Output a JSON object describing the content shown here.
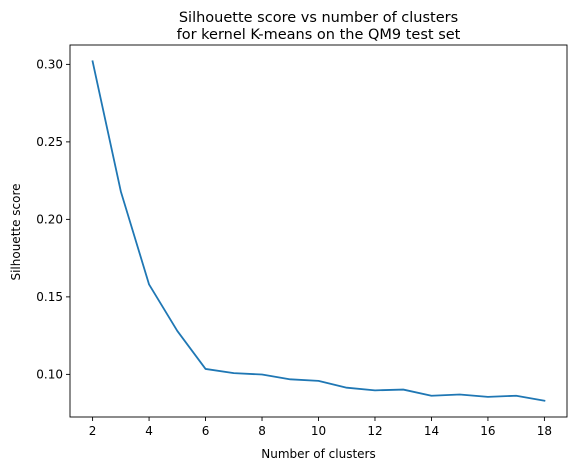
{
  "chart_data": {
    "type": "line",
    "title_lines": [
      "Silhouette score vs number of clusters",
      "for kernel K-means on the QM9 test set"
    ],
    "xlabel": "Number of clusters",
    "ylabel": "Silhouette score",
    "xlim": [
      1.2,
      18.8
    ],
    "ylim": [
      0.0725,
      0.3125
    ],
    "xticks": [
      2,
      4,
      6,
      8,
      10,
      12,
      14,
      16,
      18
    ],
    "xtick_labels": [
      "2",
      "4",
      "6",
      "8",
      "10",
      "12",
      "14",
      "16",
      "18"
    ],
    "yticks": [
      0.1,
      0.15,
      0.2,
      0.25,
      0.3
    ],
    "ytick_labels": [
      "0.10",
      "0.15",
      "0.20",
      "0.25",
      "0.30"
    ],
    "grid": false,
    "series": [
      {
        "color": "#1f77b4",
        "x": [
          2,
          3,
          4,
          5,
          6,
          7,
          8,
          9,
          10,
          11,
          12,
          13,
          14,
          15,
          16,
          17,
          18
        ],
        "y": [
          0.302,
          0.218,
          0.158,
          0.128,
          0.1035,
          0.1008,
          0.0999,
          0.0968,
          0.0958,
          0.0914,
          0.0897,
          0.0902,
          0.0862,
          0.087,
          0.0855,
          0.0862,
          0.083
        ]
      }
    ]
  }
}
